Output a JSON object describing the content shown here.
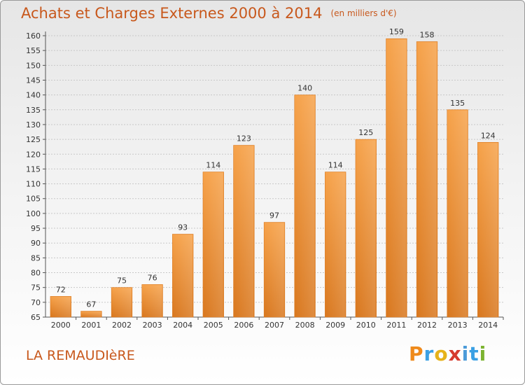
{
  "header": {
    "title": "Achats et Charges Externes 2000 à 2014",
    "unit": "(en milliers d'€)"
  },
  "footer": {
    "place": "LA REMAUDIèRE",
    "brand": [
      "P",
      "r",
      "o",
      "x",
      "i",
      "t",
      "i"
    ]
  },
  "colors": {
    "title": "#c8581c",
    "bar_light": "#f6a24a",
    "bar_dark": "#d9781f",
    "grid": "#c0c0c0"
  },
  "chart_data": {
    "type": "bar",
    "title": "Achats et Charges Externes 2000 à 2014",
    "subtitle": "(en milliers d'€)",
    "categories": [
      "2000",
      "2001",
      "2002",
      "2003",
      "2004",
      "2005",
      "2006",
      "2007",
      "2008",
      "2009",
      "2010",
      "2011",
      "2012",
      "2013",
      "2014"
    ],
    "values": [
      72,
      67,
      75,
      76,
      93,
      114,
      123,
      97,
      140,
      114,
      125,
      159,
      158,
      135,
      124
    ],
    "ylim": [
      65,
      160
    ],
    "yticks": [
      65,
      70,
      75,
      80,
      85,
      90,
      95,
      100,
      105,
      110,
      115,
      120,
      125,
      130,
      135,
      140,
      145,
      150,
      155,
      160
    ],
    "grid": true,
    "data_labels": true
  }
}
